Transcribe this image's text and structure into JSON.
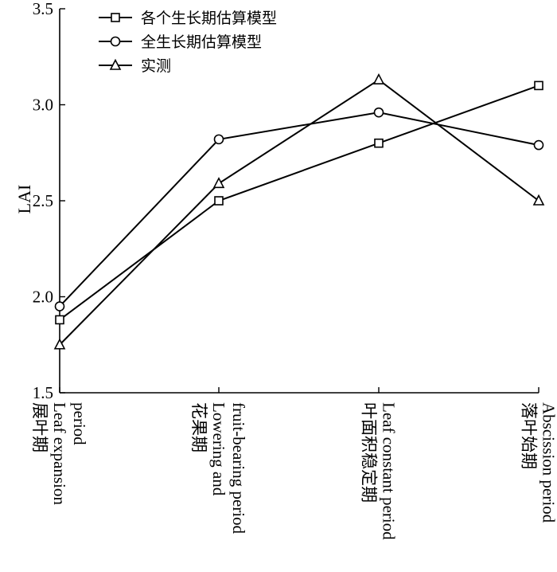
{
  "chart_data": {
    "type": "line",
    "ylabel": "LAI",
    "ylim": [
      1.5,
      3.5
    ],
    "yticks": [
      1.5,
      2.0,
      2.5,
      3.0,
      3.5
    ],
    "categories": [
      {
        "zh": "展叶期",
        "en": [
          "Leaf expansion",
          "period"
        ]
      },
      {
        "zh": "花果期",
        "en": [
          "Lowering and",
          "fruit-bearing period"
        ]
      },
      {
        "zh": "叶面积稳定期",
        "en": [
          "Leaf constant period"
        ]
      },
      {
        "zh": "落叶始期",
        "en": [
          "Abscission period"
        ]
      }
    ],
    "series": [
      {
        "name": "各个生长期估算模型",
        "marker": "square",
        "values": [
          1.88,
          2.5,
          2.8,
          3.1
        ]
      },
      {
        "name": "全生长期估算模型",
        "marker": "circle",
        "values": [
          1.95,
          2.82,
          2.96,
          2.79
        ]
      },
      {
        "name": "实测",
        "marker": "triangle",
        "values": [
          1.75,
          2.59,
          3.13,
          2.5
        ]
      }
    ],
    "legend_position": "top-left",
    "grid": false
  }
}
